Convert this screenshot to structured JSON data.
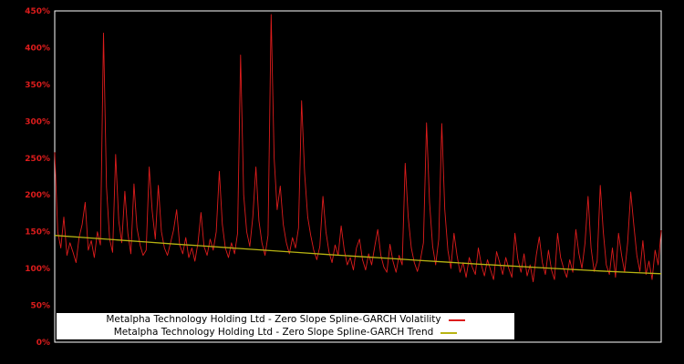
{
  "chart_data": {
    "type": "line",
    "title": "",
    "xlabel": "",
    "ylabel": "",
    "ylim": [
      0,
      450
    ],
    "grid": false,
    "background": "#000000",
    "frame_color": "#ffffff",
    "tick_label_color": "#dd1c1c",
    "legend_position": "bottom-center",
    "y_ticks": [
      "0%",
      "50%",
      "100%",
      "150%",
      "200%",
      "250%",
      "300%",
      "350%",
      "400%",
      "450%"
    ],
    "series": [
      {
        "name": "Metalpha Technology Holding Ltd - Zero Slope Spline-GARCH Volatility",
        "color": "#dd1c1c",
        "values": [
          258,
          150,
          128,
          170,
          118,
          135,
          122,
          108,
          142,
          160,
          190,
          125,
          138,
          115,
          150,
          132,
          420,
          210,
          140,
          122,
          255,
          165,
          135,
          205,
          148,
          120,
          215,
          155,
          132,
          118,
          125,
          238,
          178,
          140,
          213,
          150,
          128,
          118,
          135,
          152,
          180,
          132,
          120,
          142,
          115,
          128,
          110,
          135,
          176,
          130,
          118,
          140,
          125,
          150,
          232,
          160,
          128,
          115,
          135,
          120,
          148,
          390,
          200,
          150,
          130,
          170,
          238,
          165,
          135,
          118,
          145,
          445,
          250,
          180,
          212,
          160,
          135,
          120,
          142,
          128,
          155,
          328,
          230,
          170,
          145,
          125,
          112,
          130,
          198,
          150,
          122,
          108,
          132,
          118,
          158,
          125,
          105,
          115,
          98,
          128,
          140,
          112,
          98,
          120,
          105,
          130,
          153,
          118,
          102,
          95,
          133,
          110,
          95,
          118,
          105,
          243,
          170,
          128,
          108,
          96,
          112,
          135,
          298,
          190,
          130,
          105,
          140,
          297,
          180,
          125,
          100,
          148,
          118,
          95,
          108,
          88,
          115,
          102,
          92,
          128,
          105,
          90,
          112,
          98,
          85,
          123,
          108,
          92,
          115,
          100,
          88,
          148,
          112,
          95,
          120,
          90,
          105,
          82,
          118,
          143,
          108,
          92,
          125,
          98,
          85,
          148,
          115,
          100,
          88,
          112,
          95,
          153,
          120,
          100,
          135,
          198,
          128,
          96,
          110,
          213,
          150,
          105,
          92,
          128,
          88,
          148,
          118,
          95,
          135,
          204,
          160,
          118,
          96,
          138,
          92,
          110,
          85,
          125,
          105,
          152
        ]
      },
      {
        "name": "Metalpha Technology Holding Ltd - Zero Slope Spline-GARCH Trend",
        "color": "#b8b412",
        "x_fractions": [
          0,
          0.05,
          0.1,
          0.15,
          0.2,
          0.25,
          0.3,
          0.35,
          0.4,
          0.45,
          0.5,
          0.55,
          0.6,
          0.65,
          0.7,
          0.75,
          0.8,
          0.85,
          0.9,
          0.95,
          1
        ],
        "values": [
          145,
          142,
          139.1,
          136.1,
          133.2,
          130.4,
          127.5,
          124.7,
          121.9,
          119.1,
          116.4,
          113.8,
          111.1,
          108.6,
          106,
          103.6,
          101.2,
          98.9,
          96.7,
          94.7,
          93
        ]
      }
    ]
  }
}
